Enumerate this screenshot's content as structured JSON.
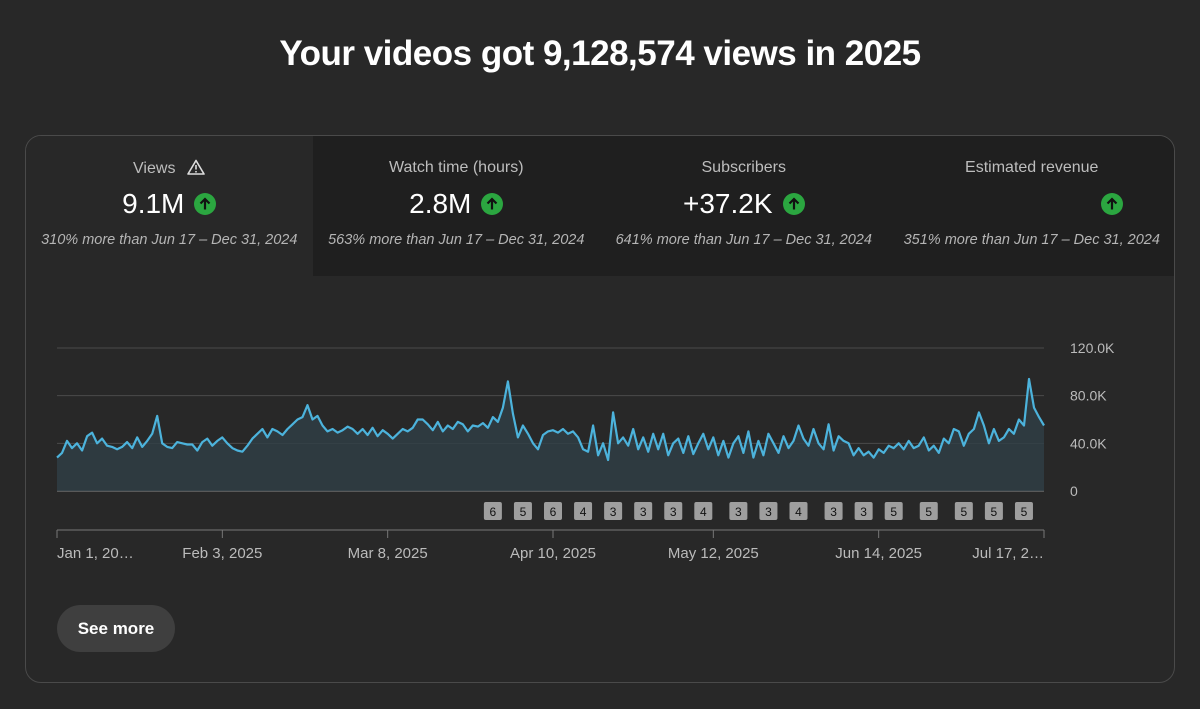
{
  "header": {
    "title": "Your videos got 9,128,574 views in 2025"
  },
  "cards": [
    {
      "label": "Views",
      "value": "9.1M",
      "comparison": "310% more than Jun 17 – Dec 31, 2024"
    },
    {
      "label": "Watch time (hours)",
      "value": "2.8M",
      "comparison": "563% more than Jun 17 – Dec 31, 2024"
    },
    {
      "label": "Subscribers",
      "value": "+37.2K",
      "comparison": "641% more than Jun 17 – Dec 31, 2024"
    },
    {
      "label": "Estimated revenue",
      "comparison": "351% more than Jun 17 – Dec 31, 2024"
    }
  ],
  "chart_data": {
    "type": "line",
    "color": "#4cb3dc",
    "grid": true,
    "values": [
      28000,
      32000,
      42000,
      36000,
      40000,
      34000,
      46000,
      49000,
      40000,
      44000,
      38000,
      37000,
      35000,
      37000,
      41000,
      36000,
      45000,
      37000,
      42000,
      48000,
      63000,
      40000,
      37000,
      36000,
      41000,
      40000,
      39000,
      39000,
      34000,
      41000,
      44000,
      38000,
      42000,
      45000,
      40000,
      36000,
      34000,
      33000,
      38000,
      44000,
      48000,
      52000,
      45000,
      52000,
      50000,
      47000,
      52000,
      56000,
      60000,
      62000,
      72000,
      60000,
      63000,
      55000,
      50000,
      52000,
      49000,
      51000,
      54000,
      52000,
      48000,
      52000,
      47000,
      53000,
      46000,
      51000,
      48000,
      44000,
      48000,
      52000,
      50000,
      53000,
      60000,
      60000,
      56000,
      51000,
      58000,
      50000,
      55000,
      52000,
      58000,
      56000,
      50000,
      55000,
      54000,
      57000,
      53000,
      62000,
      58000,
      70000,
      92000,
      65000,
      45000,
      55000,
      48000,
      40000,
      35000,
      47000,
      50000,
      51000,
      49000,
      52000,
      48000,
      50000,
      45000,
      35000,
      33000,
      55000,
      30000,
      40000,
      26000,
      66000,
      40000,
      45000,
      38000,
      52000,
      35000,
      45000,
      33000,
      48000,
      35000,
      48000,
      30000,
      40000,
      44000,
      32000,
      46000,
      31000,
      40000,
      48000,
      35000,
      45000,
      30000,
      42000,
      28000,
      40000,
      46000,
      32000,
      50000,
      28000,
      42000,
      30000,
      48000,
      40000,
      32000,
      46000,
      36000,
      42000,
      55000,
      44000,
      38000,
      52000,
      40000,
      35000,
      56000,
      34000,
      46000,
      42000,
      40000,
      30000,
      36000,
      30000,
      33000,
      28000,
      35000,
      32000,
      38000,
      36000,
      40000,
      35000,
      42000,
      36000,
      38000,
      45000,
      34000,
      38000,
      32000,
      44000,
      40000,
      52000,
      50000,
      38000,
      48000,
      52000,
      66000,
      55000,
      40000,
      52000,
      42000,
      45000,
      52000,
      48000,
      60000,
      55000,
      94000,
      70000,
      62000,
      55000
    ],
    "xlim": [
      0,
      197
    ],
    "xticks": [
      {
        "value": 0,
        "label": "Jan 1, 20…"
      },
      {
        "value": 33,
        "label": "Feb 3, 2025"
      },
      {
        "value": 66,
        "label": "Mar 8, 2025"
      },
      {
        "value": 99,
        "label": "Apr 10, 2025"
      },
      {
        "value": 131,
        "label": "May 12, 2025"
      },
      {
        "value": 164,
        "label": "Jun 14, 2025"
      },
      {
        "value": 197,
        "label": "Jul 17, 2…"
      }
    ],
    "ylim": [
      0,
      120000
    ],
    "yticks": [
      0,
      {
        "value": 40000,
        "label": "40.0K"
      },
      {
        "value": 80000,
        "label": "80.0K"
      },
      {
        "value": 120000,
        "label": "120.0K"
      }
    ],
    "video_markers": {
      "x": [
        87,
        93,
        99,
        105,
        111,
        117,
        123,
        129,
        136,
        142,
        148,
        155,
        161,
        167,
        174,
        181,
        187,
        193
      ],
      "counts": [
        6,
        5,
        6,
        4,
        3,
        3,
        3,
        4,
        3,
        3,
        4,
        3,
        3,
        5,
        5,
        5,
        5,
        5
      ]
    }
  },
  "button": {
    "label": "See more"
  }
}
